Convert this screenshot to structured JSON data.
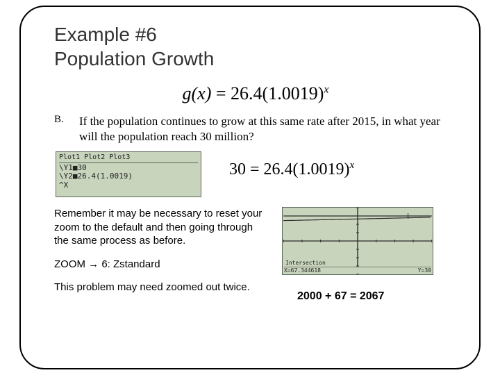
{
  "title_line1": "Example #6",
  "title_line2": "Population Growth",
  "main_formula": {
    "lhs": "g(x)",
    "eq": " = ",
    "a": "26.4",
    "b": "(1.0019)",
    "exp": "x"
  },
  "question": {
    "label": "B.",
    "text": "If the population continues to grow at this same rate after 2015, in what year will the population reach 30 million?"
  },
  "calc_y_screen": {
    "header": "Plot1 Plot2 Plot3",
    "l1": "\\Y1■30",
    "l2": "\\Y2■26.4(1.0019)",
    "l3": "^X"
  },
  "eq_solve": {
    "lhs": "30",
    "eq": " = ",
    "a": "26.4",
    "b": "(1.0019)",
    "exp": "x"
  },
  "note_reset": "Remember it may be necessary to reset your zoom to the default and then going through the same process as before.",
  "note_zoom": "ZOOM → 6: Zstandard",
  "note_twice": "This problem may need zoomed out twice.",
  "graph": {
    "bg": "#c8d4bc",
    "axis_color": "#2a2a2a",
    "curve_color": "#2a2a2a",
    "hline_y": 30,
    "xlim": [
      -40,
      40
    ],
    "ylim": [
      -40,
      40
    ],
    "tick_step": 10,
    "intersection_marker_x": 0.84,
    "label_top": "Intersection",
    "label_x": "X=67.344618",
    "label_y": "Y=30"
  },
  "answer": "2000 + 67 = 2067"
}
